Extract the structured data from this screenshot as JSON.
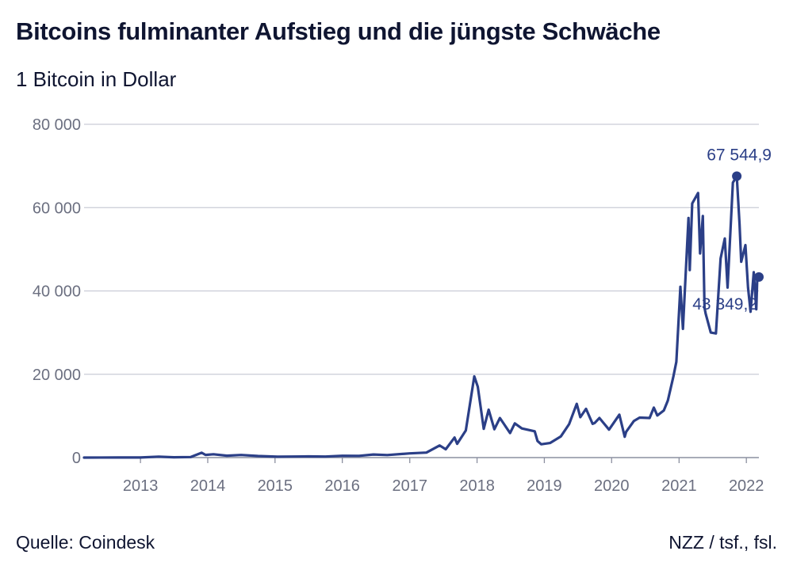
{
  "title": "Bitcoins fulminanter Aufstieg und die jüngste Schwäche",
  "subtitle": "1 Bitcoin in Dollar",
  "source": "Quelle: Coindesk",
  "credit": "NZZ / tsf., fsl.",
  "colors": {
    "line": "#2b3f87",
    "grid": "#c9ccd6",
    "axis_text": "#6b6f80",
    "text": "#0f1531"
  },
  "chart_data": {
    "type": "line",
    "title": "Bitcoins fulminanter Aufstieg und die jüngste Schwäche",
    "subtitle": "1 Bitcoin in Dollar",
    "xlabel": "",
    "ylabel": "",
    "ylim": [
      0,
      80000
    ],
    "xlim": [
      "2012-03-01",
      "2022-03-10"
    ],
    "grid": "horizontal",
    "y_ticks": [
      {
        "value": 0,
        "label": "0"
      },
      {
        "value": 20000,
        "label": "20 000"
      },
      {
        "value": 40000,
        "label": "40 000"
      },
      {
        "value": 60000,
        "label": "60 000"
      },
      {
        "value": 80000,
        "label": "80 000"
      }
    ],
    "x_ticks": [
      {
        "value": "2013-01-01",
        "label": "2013"
      },
      {
        "value": "2014-01-01",
        "label": "2014"
      },
      {
        "value": "2015-01-01",
        "label": "2015"
      },
      {
        "value": "2016-01-01",
        "label": "2016"
      },
      {
        "value": "2017-01-01",
        "label": "2017"
      },
      {
        "value": "2018-01-01",
        "label": "2018"
      },
      {
        "value": "2019-01-01",
        "label": "2019"
      },
      {
        "value": "2020-01-01",
        "label": "2020"
      },
      {
        "value": "2021-01-01",
        "label": "2021"
      },
      {
        "value": "2022-01-01",
        "label": "2022"
      }
    ],
    "series": [
      {
        "x": [
          "2012-03-01",
          "2012-09-01",
          "2013-01-01",
          "2013-04-10",
          "2013-07-01",
          "2013-10-01",
          "2013-11-29",
          "2013-12-20",
          "2014-02-01",
          "2014-04-15",
          "2014-07-01",
          "2014-10-01",
          "2015-01-15",
          "2015-04-01",
          "2015-07-01",
          "2015-10-01",
          "2016-01-01",
          "2016-04-01",
          "2016-06-18",
          "2016-09-01",
          "2017-01-01",
          "2017-04-01",
          "2017-06-12",
          "2017-07-15",
          "2017-09-01",
          "2017-09-15",
          "2017-11-01",
          "2017-12-17",
          "2018-01-05",
          "2018-02-06",
          "2018-03-05",
          "2018-04-05",
          "2018-05-05",
          "2018-06-29",
          "2018-07-25",
          "2018-09-01",
          "2018-11-10",
          "2018-11-25",
          "2018-12-15",
          "2019-02-01",
          "2019-04-01",
          "2019-05-15",
          "2019-06-26",
          "2019-07-15",
          "2019-08-15",
          "2019-09-20",
          "2019-10-01",
          "2019-10-27",
          "2019-12-18",
          "2020-02-12",
          "2020-03-12",
          "2020-03-20",
          "2020-05-01",
          "2020-06-01",
          "2020-07-25",
          "2020-08-17",
          "2020-09-05",
          "2020-10-10",
          "2020-11-01",
          "2020-12-01",
          "2020-12-17",
          "2021-01-08",
          "2021-01-22",
          "2021-02-21",
          "2021-02-28",
          "2021-03-13",
          "2021-04-14",
          "2021-04-25",
          "2021-05-10",
          "2021-05-19",
          "2021-05-25",
          "2021-06-22",
          "2021-07-20",
          "2021-08-14",
          "2021-09-06",
          "2021-09-21",
          "2021-10-20",
          "2021-11-10",
          "2021-11-25",
          "2021-12-04",
          "2021-12-27",
          "2022-01-10",
          "2022-01-24",
          "2022-02-10",
          "2022-02-24",
          "2022-03-02",
          "2022-03-10"
        ],
        "y": [
          5,
          11,
          13,
          230,
          70,
          125,
          1150,
          650,
          800,
          450,
          630,
          380,
          210,
          250,
          280,
          245,
          430,
          420,
          740,
          600,
          1000,
          1200,
          2900,
          2000,
          4800,
          3300,
          6500,
          19500,
          17000,
          6900,
          11500,
          6800,
          9500,
          5900,
          8200,
          7000,
          6300,
          4000,
          3200,
          3500,
          5100,
          8000,
          12900,
          9700,
          11700,
          8100,
          8300,
          9500,
          6700,
          10300,
          5000,
          6200,
          8800,
          9600,
          9500,
          12000,
          10100,
          11300,
          13700,
          19400,
          23000,
          41000,
          30900,
          57500,
          45000,
          61000,
          63500,
          49000,
          58000,
          36000,
          34600,
          30000,
          29800,
          47800,
          52600,
          40800,
          66000,
          67544.9,
          56000,
          47000,
          51000,
          40800,
          35000,
          44500,
          35600,
          44000,
          43349.2
        ]
      }
    ],
    "annotations": [
      {
        "label": "67 544,9",
        "x": "2021-11-10",
        "y": 67544.9,
        "marker": true
      },
      {
        "label": "43 349,2",
        "x": "2022-03-10",
        "y": 43349.2,
        "marker": true
      }
    ]
  }
}
